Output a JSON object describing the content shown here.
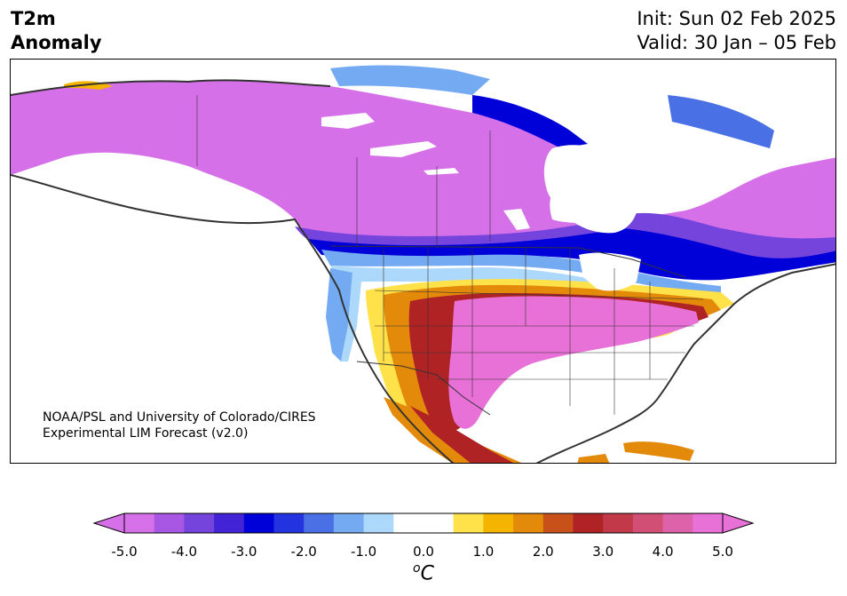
{
  "header": {
    "title_line1": "T2m",
    "title_line2": "Anomaly",
    "init": "Init: Sun 02 Feb 2025",
    "valid": "Valid: 30 Jan – 05 Feb"
  },
  "credit": {
    "line1": "NOAA/PSL and University of Colorado/CIRES",
    "line2": "Experimental LIM Forecast (v2.0)"
  },
  "colorbar": {
    "ticks": [
      "-5.0",
      "-4.0",
      "-3.0",
      "-2.0",
      "-1.0",
      "0.0",
      "1.0",
      "2.0",
      "3.0",
      "4.0",
      "5.0"
    ],
    "unit_base": "C",
    "unit_sup": "o",
    "min": -5.0,
    "max": 5.0,
    "step": 0.5,
    "colors": [
      "#d670e8",
      "#a757e3",
      "#7444dc",
      "#4223d6",
      "#0000d8",
      "#2233df",
      "#4a70e6",
      "#74aaf2",
      "#acd9fb",
      "#ffffff",
      "#ffffff",
      "#ffe14a",
      "#f5b400",
      "#e38a0b",
      "#c85119",
      "#b02325",
      "#c23a4a",
      "#d14e75",
      "#dc63aa",
      "#e871d8"
    ]
  },
  "map": {
    "region": "North America",
    "land_color": "#ffffff",
    "coast_color": "#333333"
  }
}
